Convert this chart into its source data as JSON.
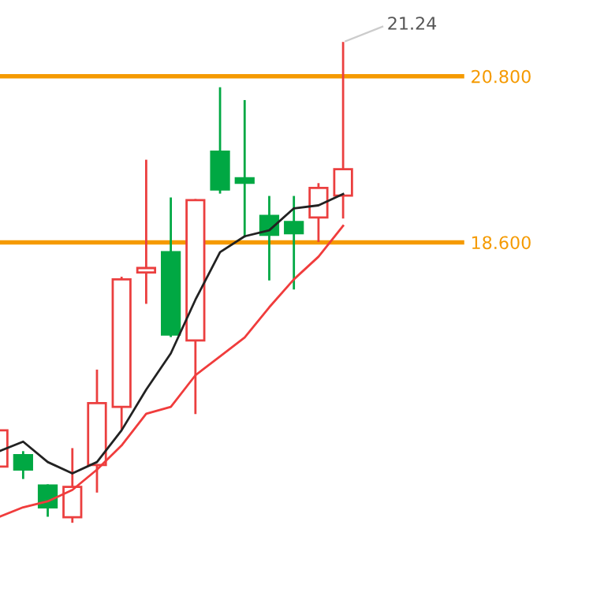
{
  "chart_data": {
    "type": "candlestick",
    "categories": [
      null,
      null,
      null,
      null,
      null,
      null,
      null,
      null,
      null,
      null,
      null,
      null,
      null,
      null,
      null
    ],
    "ohlc": [
      [
        15.63,
        16.11,
        15.63,
        16.11
      ],
      [
        15.78,
        15.82,
        15.48,
        15.59
      ],
      [
        15.38,
        15.38,
        14.98,
        15.09
      ],
      [
        14.96,
        15.86,
        14.9,
        15.36
      ],
      [
        15.65,
        16.9,
        15.3,
        16.47
      ],
      [
        16.42,
        18.13,
        16.13,
        18.11
      ],
      [
        18.2,
        19.68,
        17.8,
        18.26
      ],
      [
        18.47,
        19.18,
        17.36,
        17.38
      ],
      [
        17.3,
        19.16,
        16.34,
        19.16
      ],
      [
        19.8,
        20.64,
        19.26,
        19.3
      ],
      [
        19.45,
        20.47,
        18.68,
        19.39
      ],
      [
        18.95,
        19.2,
        18.11,
        18.7
      ],
      [
        18.87,
        19.2,
        17.99,
        18.72
      ],
      [
        18.93,
        19.37,
        18.62,
        19.32
      ],
      [
        19.22,
        21.24,
        18.93,
        19.57
      ]
    ],
    "colors": [
      "#eb3f3f",
      "#00a843",
      "#00a843",
      "#eb3f3f",
      "#eb3f3f",
      "#eb3f3f",
      "#eb3f3f",
      "#00a843",
      "#eb3f3f",
      "#00a843",
      "#00a843",
      "#00a843",
      "#00a843",
      "#eb3f3f",
      "#eb3f3f"
    ],
    "series": [
      {
        "type": "line",
        "color": "#222222",
        "values": [
          15.83,
          15.96,
          15.69,
          15.54,
          15.69,
          16.11,
          16.65,
          17.13,
          17.84,
          18.47,
          18.68,
          18.76,
          19.05,
          19.09,
          19.24
        ]
      },
      {
        "type": "line",
        "color": "#f03c3c",
        "values": [
          14.96,
          15.09,
          15.17,
          15.32,
          15.59,
          15.91,
          16.33,
          16.42,
          16.84,
          17.09,
          17.34,
          17.74,
          18.11,
          18.41,
          18.82
        ]
      }
    ],
    "ref_lines": [
      {
        "axis": "y",
        "value": 20.8,
        "color": "#f59a00"
      },
      {
        "axis": "y",
        "value": 18.6,
        "color": "#f59a00"
      }
    ],
    "yticks": [
      {
        "value": 20.8,
        "label": "20.800"
      },
      {
        "value": 18.6,
        "label": "18.600"
      }
    ],
    "annotations": [
      "21.24"
    ],
    "ylim": [
      13.77,
      21.81
    ],
    "tick_labels": "y"
  }
}
